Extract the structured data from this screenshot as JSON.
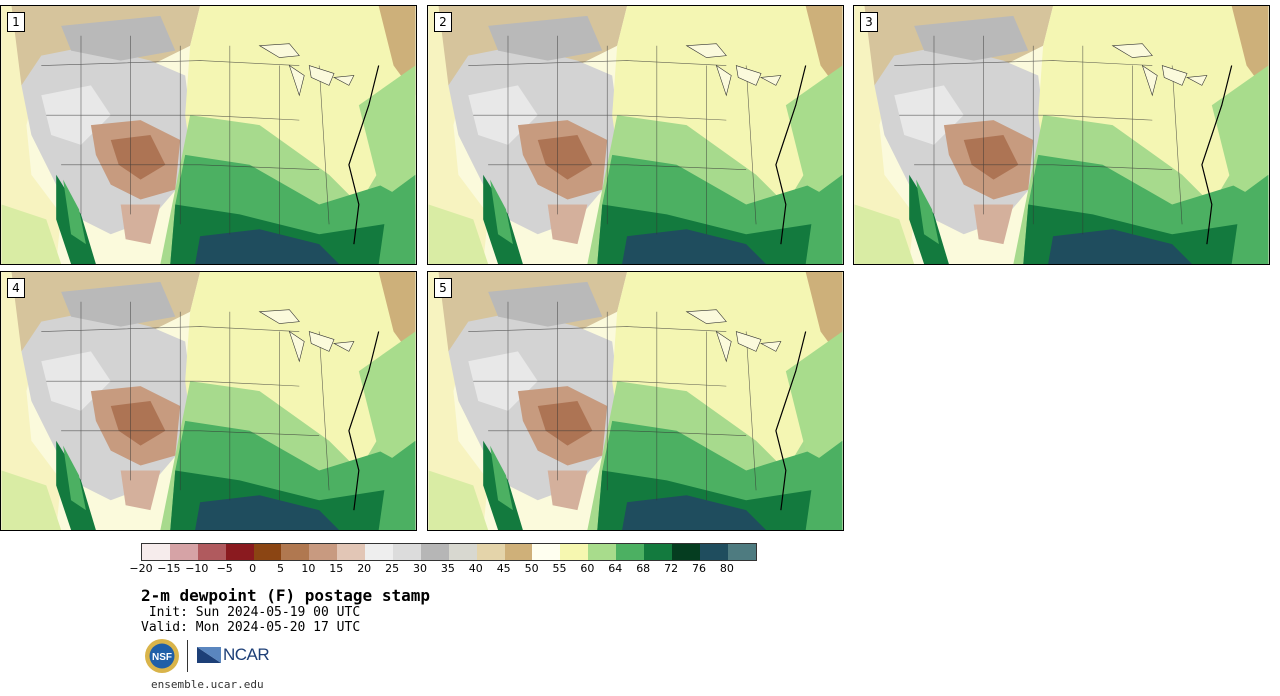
{
  "panels": [
    {
      "label": "1"
    },
    {
      "label": "2"
    },
    {
      "label": "3"
    },
    {
      "label": "4"
    },
    {
      "label": "5"
    }
  ],
  "colorbar": {
    "colors": [
      "#f6ecec",
      "#d6a3a6",
      "#b05a5e",
      "#8a1a1f",
      "#8b4513",
      "#b07850",
      "#c89a80",
      "#e2c6b6",
      "#eeeeee",
      "#dcdcdc",
      "#b6b6b6",
      "#d8d8d0",
      "#e4d4aa",
      "#cfb079",
      "#fffff0",
      "#f6f7b0",
      "#a8dc8c",
      "#4cb062",
      "#137a3e",
      "#053d20",
      "#1f4d5e",
      "#4e7b80"
    ],
    "ticks": [
      "−20",
      "−15",
      "−10",
      "−5",
      "0",
      "5",
      "10",
      "15",
      "20",
      "25",
      "30",
      "35",
      "40",
      "45",
      "50",
      "55",
      "60",
      "64",
      "68",
      "72",
      "76",
      "80"
    ]
  },
  "title": "2-m dewpoint (F) postage stamp",
  "init": " Init: Sun 2024-05-19 00 UTC",
  "valid": "Valid: Mon 2024-05-20 17 UTC",
  "logos": {
    "nsf": "NSF",
    "ncar": "NCAR"
  },
  "url": "ensemble.ucar.edu"
}
